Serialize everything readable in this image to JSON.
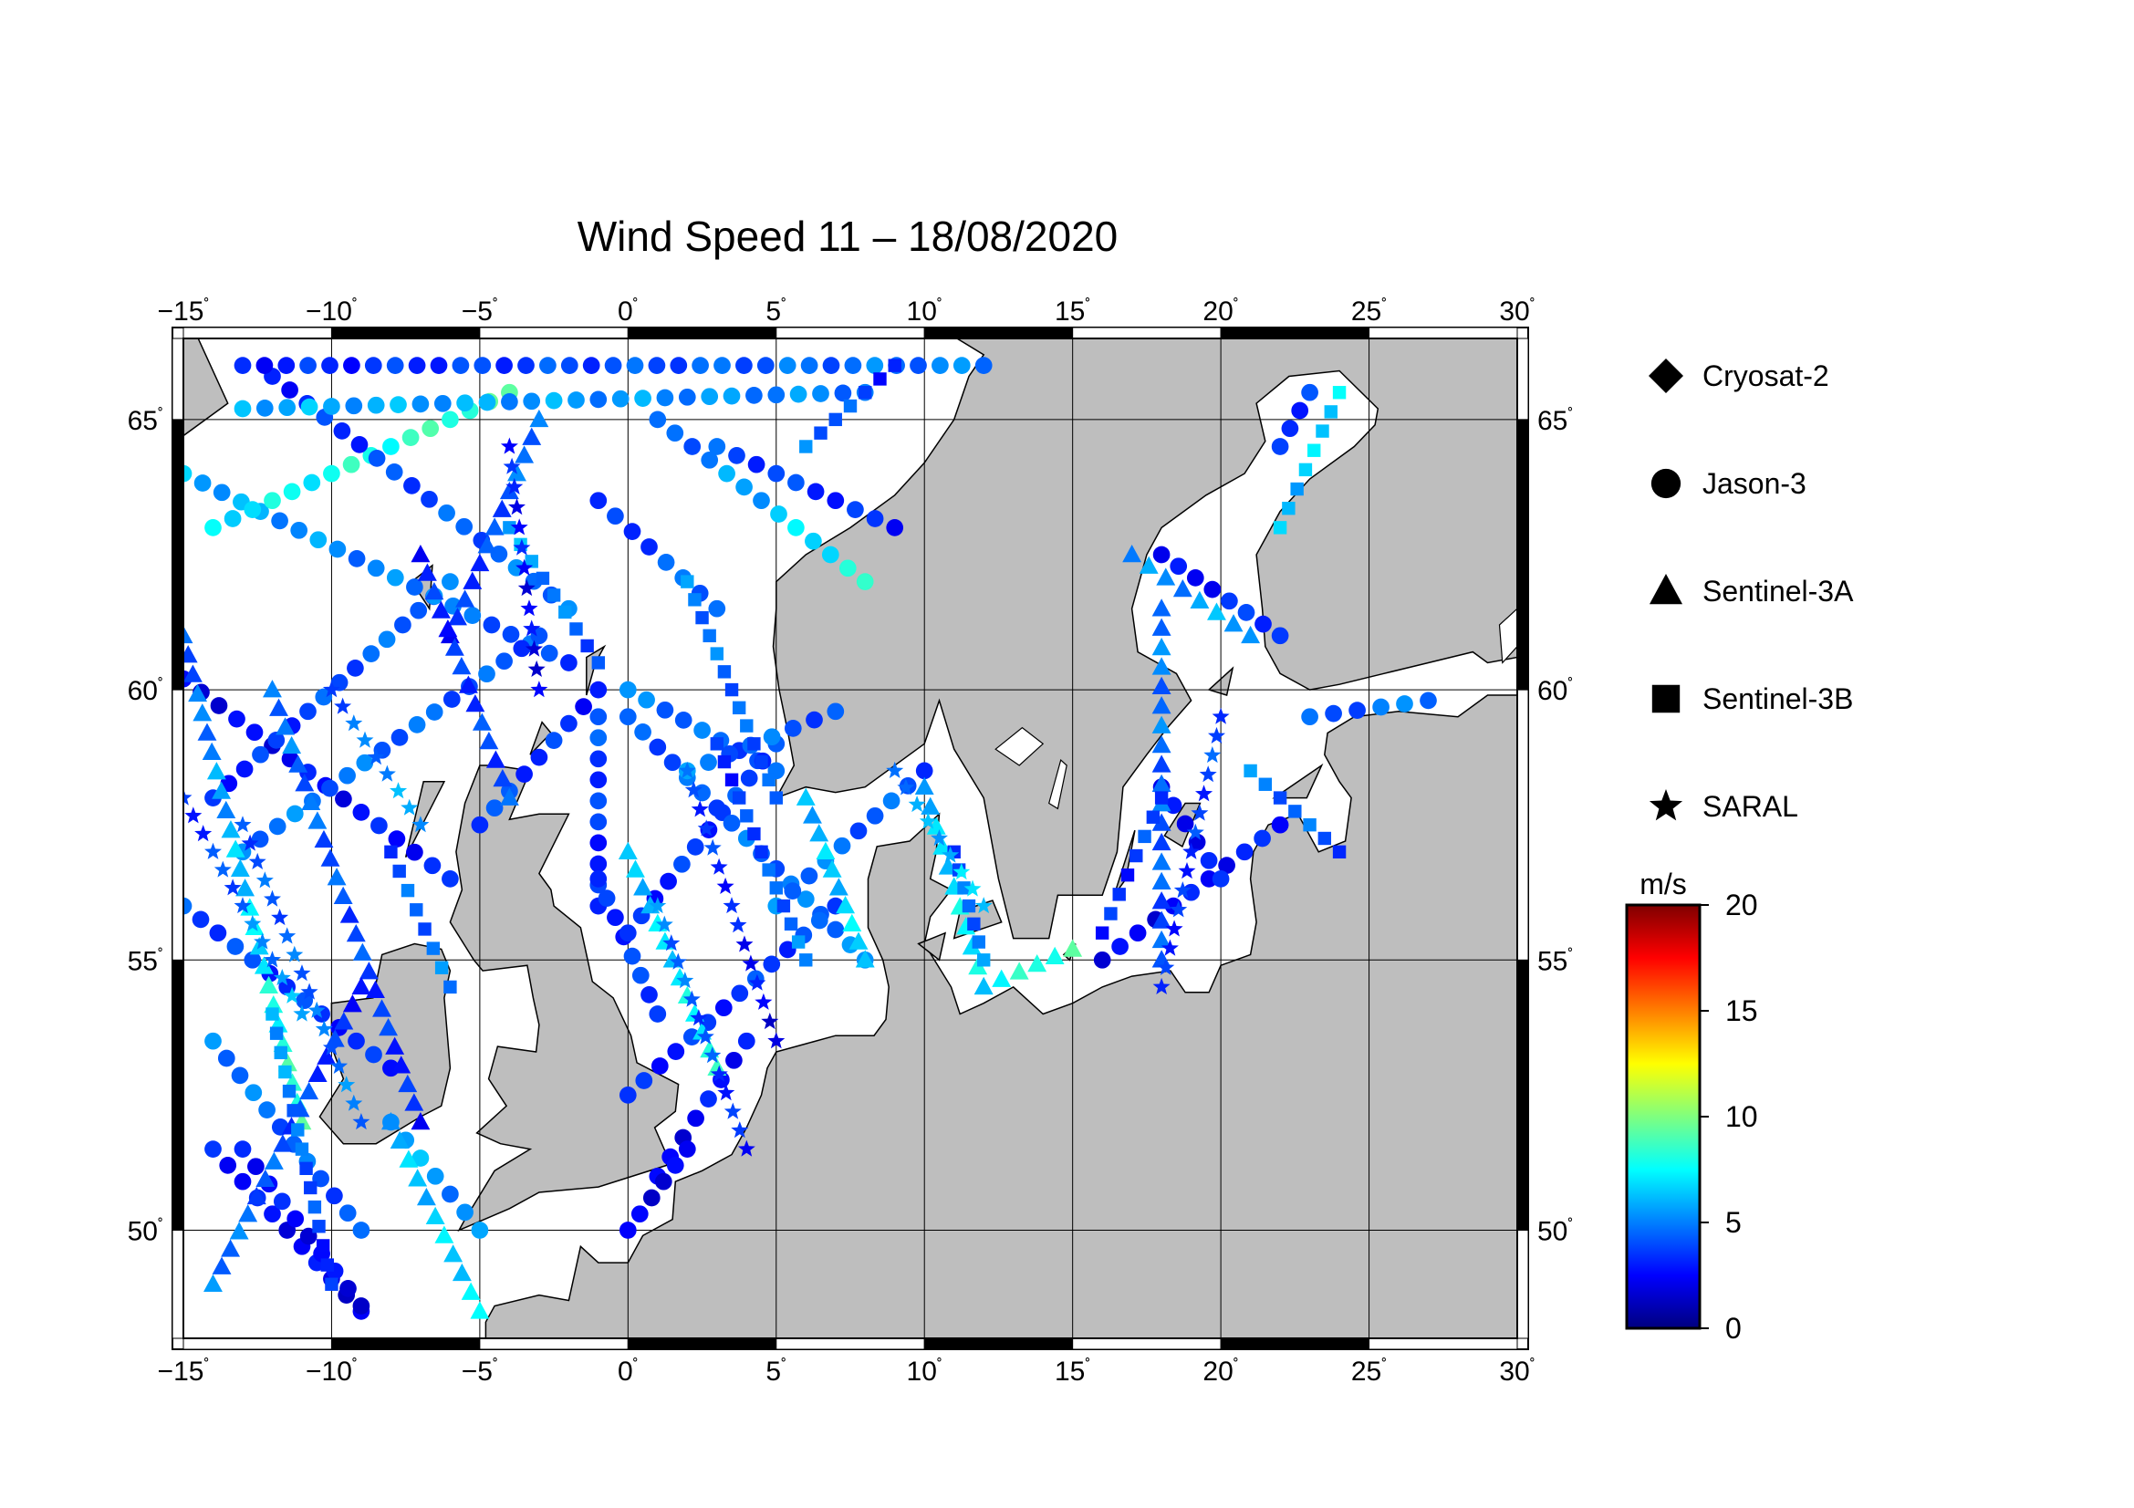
{
  "title": "Wind Speed 11 – 18/08/2020",
  "map": {
    "lon_range": [
      -15,
      30
    ],
    "lat_range": [
      48,
      66.5
    ],
    "lon_ticks": [
      -15,
      -10,
      -5,
      0,
      5,
      10,
      15,
      20,
      25,
      30
    ],
    "lat_ticks": [
      50,
      55,
      60,
      65
    ],
    "lon_labels": [
      "−15",
      "−10",
      "−5",
      "0",
      "5",
      "10",
      "15",
      "20",
      "25",
      "30"
    ],
    "lat_labels": [
      "50",
      "55",
      "60",
      "65"
    ],
    "degree_symbol": "˚",
    "land_color": "#bebebe",
    "sea_color": "#ffffff"
  },
  "legend": {
    "items": [
      {
        "label": "Cryosat-2",
        "marker": "diamond"
      },
      {
        "label": "Jason-3",
        "marker": "circle"
      },
      {
        "label": "Sentinel-3A",
        "marker": "triangle"
      },
      {
        "label": "Sentinel-3B",
        "marker": "square"
      },
      {
        "label": "SARAL",
        "marker": "star"
      }
    ]
  },
  "colorbar": {
    "unit": "m/s",
    "min": 0,
    "max": 20,
    "tick_labels": [
      "0",
      "5",
      "10",
      "15",
      "20"
    ],
    "stops": [
      "#00007f",
      "#0000ff",
      "#007fff",
      "#00ffff",
      "#7fff7f",
      "#ffff00",
      "#ff7f00",
      "#ff0000",
      "#7f0000"
    ]
  },
  "chart_data": {
    "type": "scatter",
    "title": "Wind Speed 11 – 18/08/2020",
    "xlabel": "",
    "ylabel": "",
    "xlim": [
      -15,
      30
    ],
    "ylim": [
      48,
      66.5
    ],
    "colorbar_unit": "m/s",
    "colorbar_range": [
      0,
      20
    ],
    "tracks": [
      {
        "satellite": "Jason-3",
        "from": [
          -15,
          64.0
        ],
        "to": [
          -2,
          60.5
        ],
        "speed": [
          6,
          4
        ]
      },
      {
        "satellite": "Jason-3",
        "from": [
          -15,
          60.2
        ],
        "to": [
          -6,
          56.5
        ],
        "speed": [
          2,
          3
        ]
      },
      {
        "satellite": "Jason-3",
        "from": [
          -14,
          63.0
        ],
        "to": [
          -4,
          65.5
        ],
        "speed": [
          7,
          9
        ]
      },
      {
        "satellite": "Jason-3",
        "from": [
          -14,
          58.0
        ],
        "to": [
          -6,
          62.0
        ],
        "speed": [
          3,
          5
        ]
      },
      {
        "satellite": "Jason-3",
        "from": [
          -12,
          65.8
        ],
        "to": [
          -2,
          61.5
        ],
        "speed": [
          3,
          5
        ]
      },
      {
        "satellite": "Jason-3",
        "from": [
          -13,
          57.0
        ],
        "to": [
          -3,
          61.0
        ],
        "speed": [
          5,
          4
        ]
      },
      {
        "satellite": "Jason-3",
        "from": [
          -15,
          56.0
        ],
        "to": [
          -8,
          53.0
        ],
        "speed": [
          4,
          3
        ]
      },
      {
        "satellite": "Jason-3",
        "from": [
          -14,
          53.5
        ],
        "to": [
          -9,
          50.0
        ],
        "speed": [
          5,
          4
        ]
      },
      {
        "satellite": "Jason-3",
        "from": [
          -14,
          51.5
        ],
        "to": [
          -9,
          48.5
        ],
        "speed": [
          3,
          2
        ]
      },
      {
        "satellite": "Jason-3",
        "from": [
          -9,
          48.6
        ],
        "to": [
          -13,
          51.5
        ],
        "speed": [
          2,
          3
        ]
      },
      {
        "satellite": "Jason-3",
        "from": [
          -8,
          52.0
        ],
        "to": [
          -5,
          50.0
        ],
        "speed": [
          6,
          5
        ]
      },
      {
        "satellite": "Jason-3",
        "from": [
          -5,
          57.5
        ],
        "to": [
          -1,
          60.0
        ],
        "speed": [
          4,
          3
        ]
      },
      {
        "satellite": "Jason-3",
        "from": [
          -1,
          63.5
        ],
        "to": [
          3,
          61.5
        ],
        "speed": [
          3,
          5
        ]
      },
      {
        "satellite": "Jason-3",
        "from": [
          1,
          65.0
        ],
        "to": [
          8,
          62.0
        ],
        "speed": [
          4,
          8
        ]
      },
      {
        "satellite": "Jason-3",
        "from": [
          0,
          60.0
        ],
        "to": [
          5,
          58.5
        ],
        "speed": [
          5,
          4
        ]
      },
      {
        "satellite": "Jason-3",
        "from": [
          -1,
          59.5
        ],
        "to": [
          -1,
          56.0
        ],
        "speed": [
          4,
          3
        ]
      },
      {
        "satellite": "Jason-3",
        "from": [
          -1,
          56.5
        ],
        "to": [
          1,
          54.0
        ],
        "speed": [
          3,
          4
        ]
      },
      {
        "satellite": "Jason-3",
        "from": [
          0,
          55.5
        ],
        "to": [
          5,
          59.0
        ],
        "speed": [
          3,
          4
        ]
      },
      {
        "satellite": "Jason-3",
        "from": [
          0,
          59.5
        ],
        "to": [
          8,
          55.0
        ],
        "speed": [
          4,
          5
        ]
      },
      {
        "satellite": "Jason-3",
        "from": [
          0,
          52.5
        ],
        "to": [
          7,
          56.0
        ],
        "speed": [
          3,
          4
        ]
      },
      {
        "satellite": "Jason-3",
        "from": [
          1,
          51.0
        ],
        "to": [
          4,
          53.5
        ],
        "speed": [
          2,
          3
        ]
      },
      {
        "satellite": "Jason-3",
        "from": [
          0,
          50.0
        ],
        "to": [
          2,
          51.5
        ],
        "speed": [
          2,
          2
        ]
      },
      {
        "satellite": "Jason-3",
        "from": [
          5,
          56.0
        ],
        "to": [
          10,
          58.5
        ],
        "speed": [
          5,
          4
        ]
      },
      {
        "satellite": "Jason-3",
        "from": [
          2,
          58.5
        ],
        "to": [
          7,
          59.6
        ],
        "speed": [
          5,
          4
        ]
      },
      {
        "satellite": "Jason-3",
        "from": [
          -13,
          66.0
        ],
        "to": [
          12,
          66.0
        ],
        "speed": [
          3,
          5
        ]
      },
      {
        "satellite": "Jason-3",
        "from": [
          -13,
          65.2
        ],
        "to": [
          8,
          65.5
        ],
        "speed": [
          6,
          5
        ]
      },
      {
        "satellite": "Jason-3",
        "from": [
          3,
          64.5
        ],
        "to": [
          9,
          63.0
        ],
        "speed": [
          4,
          3
        ]
      },
      {
        "satellite": "Jason-3",
        "from": [
          16,
          55.0
        ],
        "to": [
          22,
          57.5
        ],
        "speed": [
          2,
          3
        ]
      },
      {
        "satellite": "Jason-3",
        "from": [
          18,
          58.2
        ],
        "to": [
          20,
          56.5
        ],
        "speed": [
          2,
          3
        ]
      },
      {
        "satellite": "Jason-3",
        "from": [
          18,
          62.5
        ],
        "to": [
          22,
          61.0
        ],
        "speed": [
          2,
          4
        ]
      },
      {
        "satellite": "Jason-3",
        "from": [
          22,
          64.5
        ],
        "to": [
          23,
          65.5
        ],
        "speed": [
          3,
          4
        ]
      },
      {
        "satellite": "Jason-3",
        "from": [
          23,
          59.5
        ],
        "to": [
          27,
          59.8
        ],
        "speed": [
          4,
          5
        ]
      },
      {
        "satellite": "Sentinel-3A",
        "from": [
          -15,
          61.0
        ],
        "to": [
          -11,
          52.0
        ],
        "speed": [
          4,
          9
        ]
      },
      {
        "satellite": "Sentinel-3A",
        "from": [
          -12,
          60.0
        ],
        "to": [
          -7,
          52.0
        ],
        "speed": [
          5,
          3
        ]
      },
      {
        "satellite": "Sentinel-3A",
        "from": [
          -14,
          49.0
        ],
        "to": [
          -9,
          54.5
        ],
        "speed": [
          5,
          3
        ]
      },
      {
        "satellite": "Sentinel-3A",
        "from": [
          -8,
          52.0
        ],
        "to": [
          -5,
          48.5
        ],
        "speed": [
          6,
          7
        ]
      },
      {
        "satellite": "Sentinel-3A",
        "from": [
          -6,
          61.0
        ],
        "to": [
          -3,
          65.0
        ],
        "speed": [
          3,
          5
        ]
      },
      {
        "satellite": "Sentinel-3A",
        "from": [
          -7,
          62.5
        ],
        "to": [
          -4,
          58.0
        ],
        "speed": [
          3,
          4
        ]
      },
      {
        "satellite": "Sentinel-3A",
        "from": [
          0,
          57.0
        ],
        "to": [
          3,
          53.0
        ],
        "speed": [
          6,
          8
        ]
      },
      {
        "satellite": "Sentinel-3A",
        "from": [
          6,
          58.0
        ],
        "to": [
          8,
          55.0
        ],
        "speed": [
          6,
          7
        ]
      },
      {
        "satellite": "Sentinel-3A",
        "from": [
          10,
          58.2
        ],
        "to": [
          12,
          54.5
        ],
        "speed": [
          6,
          8
        ]
      },
      {
        "satellite": "Sentinel-3A",
        "from": [
          12,
          54.5
        ],
        "to": [
          15,
          55.2
        ],
        "speed": [
          7,
          9
        ]
      },
      {
        "satellite": "Sentinel-3A",
        "from": [
          18,
          55.0
        ],
        "to": [
          18,
          61.5
        ],
        "speed": [
          4,
          5
        ]
      },
      {
        "satellite": "Sentinel-3A",
        "from": [
          17,
          62.5
        ],
        "to": [
          21,
          61.0
        ],
        "speed": [
          5,
          6
        ]
      },
      {
        "satellite": "Sentinel-3B",
        "from": [
          -12,
          54.0
        ],
        "to": [
          -10,
          49.0
        ],
        "speed": [
          6,
          3
        ]
      },
      {
        "satellite": "Sentinel-3B",
        "from": [
          -8,
          57.0
        ],
        "to": [
          -6,
          54.5
        ],
        "speed": [
          4,
          5
        ]
      },
      {
        "satellite": "Sentinel-3B",
        "from": [
          -4,
          63.0
        ],
        "to": [
          -1,
          60.5
        ],
        "speed": [
          6,
          4
        ]
      },
      {
        "satellite": "Sentinel-3B",
        "from": [
          2,
          62.0
        ],
        "to": [
          5,
          58.0
        ],
        "speed": [
          5,
          4
        ]
      },
      {
        "satellite": "Sentinel-3B",
        "from": [
          3,
          59.0
        ],
        "to": [
          6,
          55.0
        ],
        "speed": [
          3,
          5
        ]
      },
      {
        "satellite": "Sentinel-3B",
        "from": [
          6,
          64.5
        ],
        "to": [
          9,
          66.0
        ],
        "speed": [
          5,
          3
        ]
      },
      {
        "satellite": "Sentinel-3B",
        "from": [
          11,
          57.0
        ],
        "to": [
          12,
          55.0
        ],
        "speed": [
          4,
          5
        ]
      },
      {
        "satellite": "Sentinel-3B",
        "from": [
          16,
          55.5
        ],
        "to": [
          18,
          58.0
        ],
        "speed": [
          3,
          4
        ]
      },
      {
        "satellite": "Sentinel-3B",
        "from": [
          21,
          58.5
        ],
        "to": [
          24,
          57.0
        ],
        "speed": [
          5,
          4
        ]
      },
      {
        "satellite": "Sentinel-3B",
        "from": [
          22,
          63.0
        ],
        "to": [
          24,
          65.5
        ],
        "speed": [
          6,
          7
        ]
      },
      {
        "satellite": "SARAL",
        "from": [
          -15,
          58.0
        ],
        "to": [
          -11,
          54.0
        ],
        "speed": [
          3,
          6
        ]
      },
      {
        "satellite": "SARAL",
        "from": [
          -13,
          57.5
        ],
        "to": [
          -9,
          52.0
        ],
        "speed": [
          4,
          5
        ]
      },
      {
        "satellite": "SARAL",
        "from": [
          -10,
          60.0
        ],
        "to": [
          -7,
          57.5
        ],
        "speed": [
          4,
          6
        ]
      },
      {
        "satellite": "SARAL",
        "from": [
          -4,
          64.5
        ],
        "to": [
          -3,
          60.0
        ],
        "speed": [
          3,
          2
        ]
      },
      {
        "satellite": "SARAL",
        "from": [
          1,
          56.0
        ],
        "to": [
          4,
          51.5
        ],
        "speed": [
          5,
          3
        ]
      },
      {
        "satellite": "SARAL",
        "from": [
          2,
          58.5
        ],
        "to": [
          5,
          53.5
        ],
        "speed": [
          4,
          2
        ]
      },
      {
        "satellite": "SARAL",
        "from": [
          9,
          58.5
        ],
        "to": [
          12,
          56.0
        ],
        "speed": [
          5,
          7
        ]
      },
      {
        "satellite": "SARAL",
        "from": [
          18,
          54.5
        ],
        "to": [
          20,
          59.5
        ],
        "speed": [
          3,
          4
        ]
      }
    ]
  }
}
